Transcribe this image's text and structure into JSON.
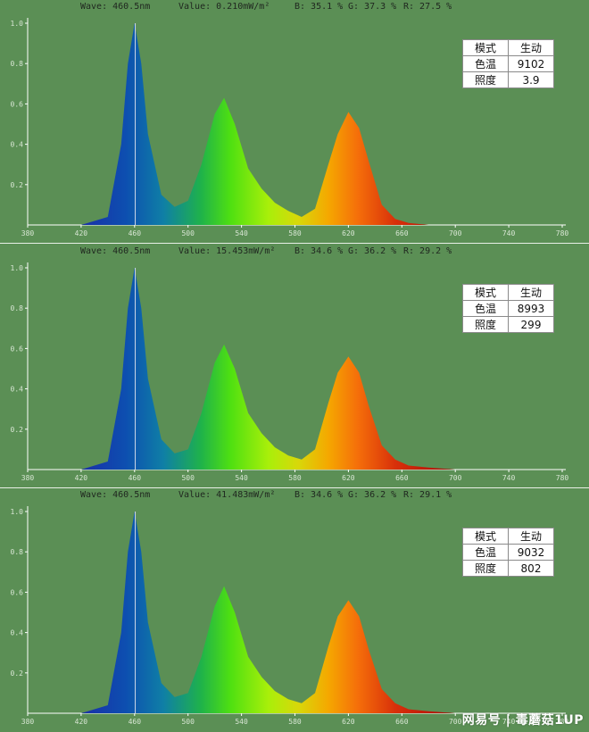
{
  "panels": [
    {
      "header": {
        "wave": "Wave: 460.5nm",
        "value": "Value: 0.210mW/m²",
        "b": "B: 35.1 %",
        "g": "G: 37.3 %",
        "r": "R: 27.5 %"
      },
      "info": {
        "mode_label": "模式",
        "mode_value": "生动",
        "cct_label": "色温",
        "cct_value": "9102",
        "lux_label": "照度",
        "lux_value": "3.9"
      }
    },
    {
      "header": {
        "wave": "Wave: 460.5nm",
        "value": "Value: 15.453mW/m²",
        "b": "B: 34.6 %",
        "g": "G: 36.2 %",
        "r": "R: 29.2 %"
      },
      "info": {
        "mode_label": "模式",
        "mode_value": "生动",
        "cct_label": "色温",
        "cct_value": "8993",
        "lux_label": "照度",
        "lux_value": "299"
      }
    },
    {
      "header": {
        "wave": "Wave: 460.5nm",
        "value": "Value: 41.483mW/m²",
        "b": "B: 34.6 %",
        "g": "G: 36.2 %",
        "r": "R: 29.1 %"
      },
      "info": {
        "mode_label": "模式",
        "mode_value": "生动",
        "cct_label": "色温",
        "cct_value": "9032",
        "lux_label": "照度",
        "lux_value": "802"
      }
    }
  ],
  "chart_data": [
    {
      "type": "area",
      "x": [
        380,
        420,
        440,
        450,
        455,
        460,
        465,
        470,
        480,
        490,
        500,
        510,
        520,
        527,
        535,
        545,
        555,
        565,
        575,
        585,
        595,
        605,
        612,
        620,
        628,
        635,
        645,
        655,
        665,
        680,
        700,
        740,
        780
      ],
      "y": [
        0,
        0,
        0.04,
        0.4,
        0.8,
        1.0,
        0.8,
        0.45,
        0.15,
        0.09,
        0.12,
        0.3,
        0.55,
        0.63,
        0.5,
        0.28,
        0.18,
        0.11,
        0.07,
        0.04,
        0.08,
        0.3,
        0.45,
        0.56,
        0.48,
        0.32,
        0.1,
        0.03,
        0.01,
        0.0,
        0.0,
        0.0,
        0.0
      ],
      "xlim": [
        380,
        780
      ],
      "ylim": [
        0,
        1.0
      ],
      "xticks": [
        380,
        420,
        460,
        500,
        540,
        580,
        620,
        660,
        700,
        740,
        780
      ],
      "yticks": [
        0.2,
        0.4,
        0.6,
        0.8,
        1.0
      ],
      "cursor_x": 460.5
    },
    {
      "type": "area",
      "x": [
        380,
        420,
        440,
        450,
        455,
        460,
        465,
        470,
        480,
        490,
        500,
        510,
        520,
        527,
        535,
        545,
        555,
        565,
        575,
        585,
        595,
        605,
        612,
        620,
        628,
        635,
        645,
        655,
        665,
        680,
        700,
        740,
        780
      ],
      "y": [
        0,
        0,
        0.04,
        0.4,
        0.8,
        1.0,
        0.8,
        0.45,
        0.15,
        0.08,
        0.1,
        0.28,
        0.53,
        0.62,
        0.5,
        0.28,
        0.18,
        0.11,
        0.07,
        0.05,
        0.1,
        0.33,
        0.48,
        0.56,
        0.48,
        0.32,
        0.12,
        0.05,
        0.02,
        0.01,
        0.0,
        0.0,
        0.0
      ],
      "xlim": [
        380,
        780
      ],
      "ylim": [
        0,
        1.0
      ],
      "xticks": [
        380,
        420,
        460,
        500,
        540,
        580,
        620,
        660,
        700,
        740,
        780
      ],
      "yticks": [
        0.2,
        0.4,
        0.6,
        0.8,
        1.0
      ],
      "cursor_x": 460.5
    },
    {
      "type": "area",
      "x": [
        380,
        420,
        440,
        450,
        455,
        460,
        465,
        470,
        480,
        490,
        500,
        510,
        520,
        527,
        535,
        545,
        555,
        565,
        575,
        585,
        595,
        605,
        612,
        620,
        628,
        635,
        645,
        655,
        665,
        680,
        700,
        740,
        780
      ],
      "y": [
        0,
        0,
        0.04,
        0.4,
        0.8,
        1.0,
        0.8,
        0.45,
        0.15,
        0.08,
        0.1,
        0.28,
        0.53,
        0.63,
        0.5,
        0.28,
        0.18,
        0.11,
        0.07,
        0.05,
        0.1,
        0.33,
        0.48,
        0.56,
        0.48,
        0.32,
        0.12,
        0.05,
        0.02,
        0.01,
        0.0,
        0.0,
        0.0
      ],
      "xlim": [
        380,
        780
      ],
      "ylim": [
        0,
        1.0
      ],
      "xticks": [
        380,
        420,
        460,
        500,
        540,
        580,
        620,
        660,
        700,
        740,
        780
      ],
      "yticks": [
        0.2,
        0.4,
        0.6,
        0.8,
        1.0
      ],
      "cursor_x": 460.5
    }
  ],
  "watermark": "网易号 | 毒蘑菇1UP"
}
